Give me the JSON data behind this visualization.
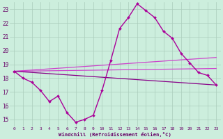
{
  "xlabel": "Windchill (Refroidissement éolien,°C)",
  "bg_color": "#cceedd",
  "grid_color": "#aaccbb",
  "line_color": "#aa0099",
  "x_min": -0.5,
  "x_max": 23.5,
  "y_min": 14.5,
  "y_max": 23.5,
  "yticks": [
    15,
    16,
    17,
    18,
    19,
    20,
    21,
    22,
    23
  ],
  "xticks": [
    0,
    1,
    2,
    3,
    4,
    5,
    6,
    7,
    8,
    9,
    10,
    11,
    12,
    13,
    14,
    15,
    16,
    17,
    18,
    19,
    20,
    21,
    22,
    23
  ],
  "main_series": {
    "x": [
      0,
      1,
      2,
      3,
      4,
      5,
      6,
      7,
      8,
      9,
      10,
      11,
      12,
      13,
      14,
      15,
      16,
      17,
      18,
      19,
      20,
      21,
      22,
      23
    ],
    "y": [
      18.5,
      18.0,
      17.7,
      17.1,
      16.3,
      16.7,
      15.5,
      14.8,
      15.0,
      15.3,
      17.1,
      19.3,
      21.6,
      22.4,
      23.4,
      22.9,
      22.4,
      21.4,
      20.9,
      19.8,
      19.1,
      18.4,
      18.2,
      17.5
    ],
    "color": "#aa0099",
    "lw": 1.0,
    "ms": 2.0
  },
  "trend_lines": [
    {
      "x0": 0,
      "y0": 18.5,
      "x1": 23,
      "y1": 19.5,
      "color": "#cc44cc",
      "lw": 0.9
    },
    {
      "x0": 0,
      "y0": 18.5,
      "x1": 23,
      "y1": 18.7,
      "color": "#cc44cc",
      "lw": 0.9
    },
    {
      "x0": 0,
      "y0": 18.5,
      "x1": 23,
      "y1": 17.5,
      "color": "#880088",
      "lw": 0.9
    }
  ]
}
